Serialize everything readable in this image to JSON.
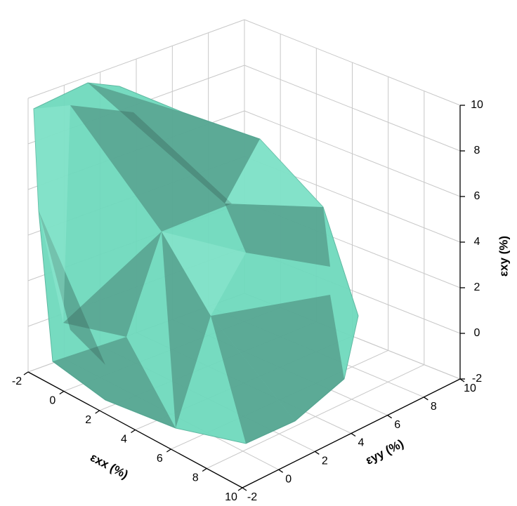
{
  "chart_data": {
    "type": "surface3d",
    "xlabel": "εxx (%)",
    "ylabel": "εyy (%)",
    "zlabel": "εxy (%)",
    "xlim": [
      -2,
      10
    ],
    "ylim": [
      -2,
      10
    ],
    "zlim": [
      -2,
      10
    ],
    "xticks": [
      -2,
      0,
      2,
      4,
      6,
      8,
      10
    ],
    "yticks": [
      -2,
      0,
      2,
      4,
      6,
      8,
      10
    ],
    "zticks": [
      -2,
      0,
      2,
      4,
      6,
      8,
      10
    ],
    "color": "#6fd9bd",
    "grid": true
  }
}
